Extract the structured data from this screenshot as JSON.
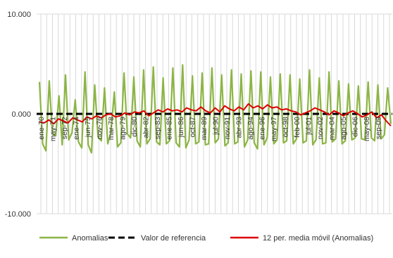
{
  "chart_data": {
    "type": "line",
    "title": "",
    "xlabel": "",
    "ylabel": "",
    "ylim": [
      -10000,
      10000
    ],
    "yticks": [
      {
        "value": 10000,
        "label": "10.000"
      },
      {
        "value": 0,
        "label": "0.000"
      },
      {
        "value": -10000,
        "label": "-10.000"
      }
    ],
    "x_tick_labels": [
      "ene-70",
      "may-71",
      "sep-72",
      "ene-74",
      "jun-75",
      "nov-76",
      "mar-78",
      "ago-79",
      "dic-80",
      "abr-82",
      "sep-83",
      "ene-85",
      "jun-86",
      "oct-87",
      "mar-89",
      "jul-90",
      "nov-91",
      "abr-93",
      "ago-94",
      "ene-96",
      "may-97",
      "oct-98",
      "feb-00",
      "jul-01",
      "nov-02",
      "mar-04",
      "ago-05",
      "dic-06",
      "may-08",
      "sep-09"
    ],
    "grid": true,
    "legend_position": "bottom",
    "colors": {
      "anomalias": "#8cb544",
      "referencia": "#000000",
      "media_movil": "#dd0000",
      "grid": "#d9d9d9"
    },
    "series": [
      {
        "name": "Anomalias",
        "style": "solid-green",
        "values": [
          3200,
          -3000,
          -3700,
          3300,
          -2000,
          -2200,
          1800,
          -3100,
          3900,
          -2600,
          -1900,
          1400,
          -2800,
          -3400,
          4200,
          -3100,
          -3900,
          2900,
          -2300,
          -2700,
          2600,
          -3000,
          -1800,
          2200,
          -3300,
          -2900,
          4100,
          -2000,
          -2400,
          3700,
          -2700,
          -3300,
          4400,
          -3000,
          -2500,
          4700,
          -2800,
          -3100,
          3600,
          -3000,
          -2700,
          4600,
          -2900,
          -3300,
          4900,
          -3400,
          -2600,
          3800,
          -3000,
          -2800,
          4100,
          -3100,
          -3000,
          4600,
          -2900,
          -2500,
          3900,
          -3200,
          -2900,
          4400,
          -3000,
          -2800,
          4000,
          -3300,
          -2600,
          4300,
          -2900,
          -3500,
          4200,
          -3100,
          -2400,
          3700,
          -3000,
          -2600,
          4000,
          -2900,
          -2700,
          3900,
          -3000,
          -2500,
          3500,
          -2900,
          -2700,
          4400,
          -3100,
          -2600,
          3600,
          -3000,
          -2900,
          4200,
          -2800,
          -2500,
          3300,
          -3000,
          -2700,
          3000,
          -2600,
          -2400,
          2800,
          -2500,
          -2600,
          3200,
          -2400,
          -2700,
          2900,
          -2500,
          -2100,
          2600,
          -1000
        ]
      },
      {
        "name": "Valor de referencia",
        "style": "dashed-black",
        "values": [
          0,
          0
        ]
      },
      {
        "name": "12 per. media móvil (Anomalias)",
        "style": "solid-red",
        "values": [
          -800,
          -900,
          -600,
          -1000,
          -500,
          -700,
          -900,
          -400,
          -600,
          -800,
          -300,
          -500,
          -200,
          -400,
          -100,
          0,
          -300,
          -200,
          100,
          -100,
          200,
          100,
          300,
          -200,
          100,
          400,
          200,
          500,
          300,
          400,
          200,
          600,
          400,
          300,
          700,
          300,
          100,
          600,
          200,
          800,
          500,
          300,
          700,
          400,
          1000,
          600,
          800,
          500,
          900,
          600,
          700,
          400,
          500,
          300,
          200,
          -100,
          100,
          300,
          600,
          400,
          200,
          -100,
          300,
          100,
          -200,
          100,
          300,
          0,
          -300,
          -100,
          200,
          -400,
          -100,
          -700,
          -1200
        ]
      }
    ],
    "legend": [
      {
        "label": "Anomalias",
        "color": "#8cb544",
        "dash": "solid"
      },
      {
        "label": "Valor de referencia",
        "color": "#000000",
        "dash": "dashed"
      },
      {
        "label": "12 per. media móvil (Anomalias)",
        "color": "#dd0000",
        "dash": "solid"
      }
    ]
  }
}
